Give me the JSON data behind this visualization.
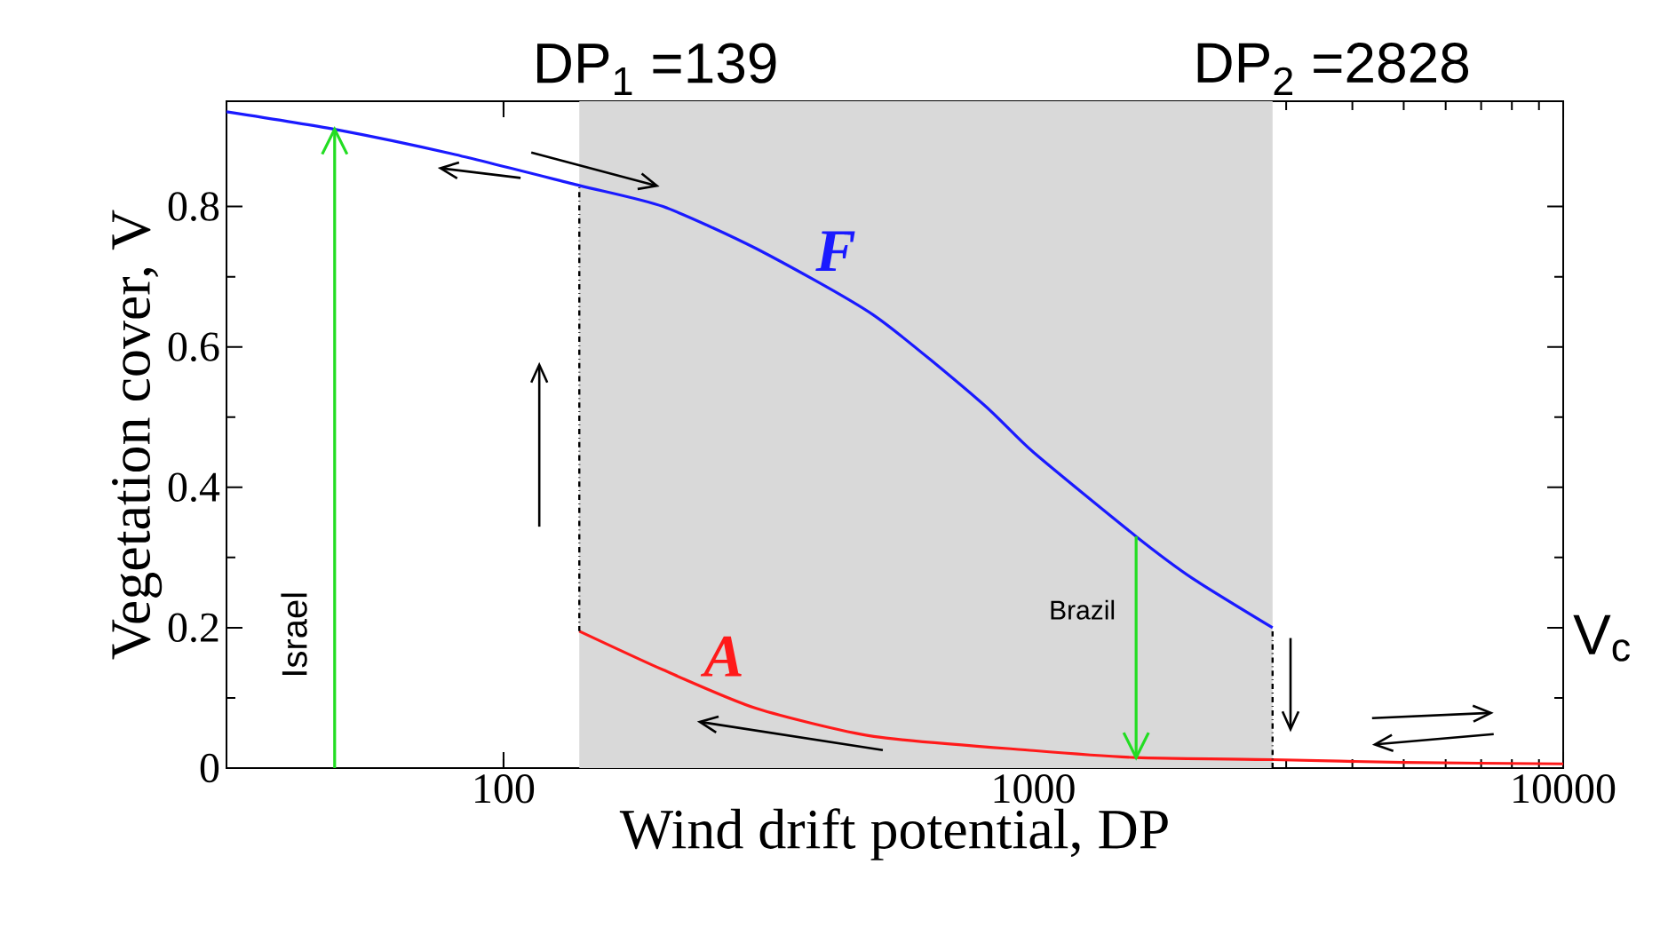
{
  "chart_data": {
    "type": "line",
    "xlabel": "Wind drift potential, DP",
    "ylabel": "Vegetation cover, V",
    "log": "x",
    "xlim": [
      30,
      10000
    ],
    "ylim": [
      0,
      0.95
    ],
    "xticks": [
      100,
      1000,
      10000
    ],
    "yticks": [
      0,
      0.2,
      0.4,
      0.6,
      0.8
    ],
    "bands": [
      {
        "axis": "x",
        "from": 139,
        "to": 2828,
        "color": "#d9d9d9"
      }
    ],
    "series": [
      {
        "name": "F",
        "color": "#1a1aff",
        "x": [
          30,
          48,
          80,
          139,
          200,
          300,
          500,
          800,
          1000,
          1563,
          2000,
          2828
        ],
        "values": [
          0.935,
          0.91,
          0.875,
          0.83,
          0.8,
          0.74,
          0.645,
          0.52,
          0.45,
          0.33,
          0.27,
          0.2
        ]
      },
      {
        "name": "A",
        "color": "#ff1a1a",
        "x": [
          139,
          200,
          300,
          500,
          1000,
          1563,
          2828,
          5000,
          10000
        ],
        "values": [
          0.195,
          0.14,
          0.085,
          0.045,
          0.025,
          0.015,
          0.012,
          0.008,
          0.006
        ]
      },
      {
        "color": "#000000",
        "line_style": "dashdot",
        "x": [
          139,
          139
        ],
        "values": [
          0.195,
          0.83
        ]
      },
      {
        "color": "#000000",
        "line_style": "dashdot",
        "x": [
          2828,
          2828
        ],
        "values": [
          0,
          0.2
        ]
      },
      {
        "color": "#22dd22",
        "x": [
          48,
          48
        ],
        "values": [
          0,
          0.91
        ]
      },
      {
        "color": "#22dd22",
        "x": [
          1563,
          1563
        ],
        "values": [
          0.33,
          0.015
        ]
      }
    ],
    "annotations": [
      "DP$_{1}$ =139",
      "DP$_{2}$ =2828",
      "Israel",
      {
        "text": "Brazil",
        "x": 1563,
        "y": 0.33
      },
      "V$_{c}$"
    ]
  }
}
